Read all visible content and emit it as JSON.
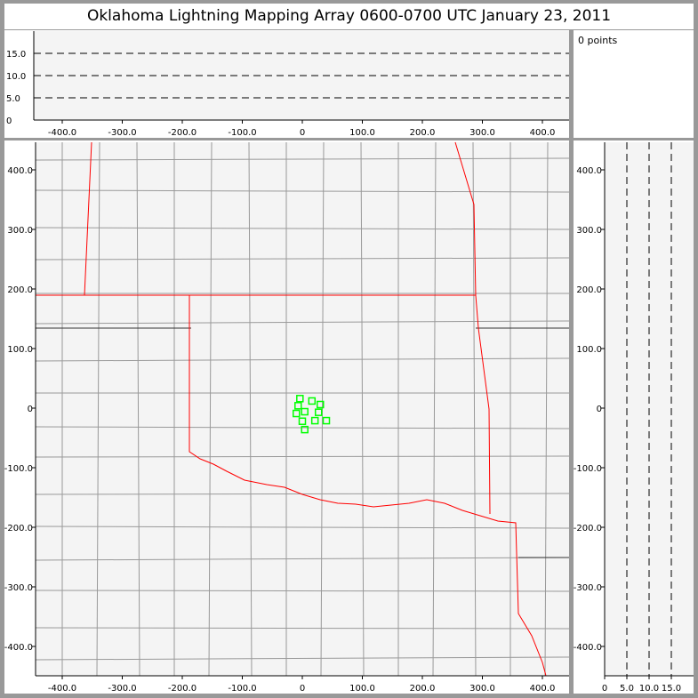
{
  "title": "Oklahoma Lightning Mapping Array   0600-0700 UTC  January 23, 2011",
  "info_panel": {
    "points_label": "0 points"
  },
  "top_panel": {
    "x_ticks": [
      "-400.0",
      "-300.0",
      "-200.0",
      "-100.0",
      "0",
      "100.0",
      "200.0",
      "300.0",
      "400.0"
    ],
    "y_ticks": [
      "0",
      "5.0",
      "10.0",
      "15.0"
    ]
  },
  "map_panel": {
    "x_ticks": [
      "-400.0",
      "-300.0",
      "-200.0",
      "-100.0",
      "0",
      "100.0",
      "200.0",
      "300.0",
      "400.0"
    ],
    "y_ticks": [
      "400.0",
      "300.0",
      "200.0",
      "100.0",
      "0",
      "-100.0",
      "-200.0",
      "-300.0",
      "-400.0"
    ],
    "stations_km": [
      [
        -4,
        16
      ],
      [
        16,
        12
      ],
      [
        30,
        6
      ],
      [
        -7,
        4
      ],
      [
        4,
        -6
      ],
      [
        -10,
        -9
      ],
      [
        27,
        -7
      ],
      [
        0,
        -22
      ],
      [
        21,
        -21
      ],
      [
        40,
        -21
      ],
      [
        4,
        -36
      ]
    ]
  },
  "side_panel": {
    "x_ticks": [
      "0",
      "5.0",
      "10.0",
      "15.0"
    ],
    "y_ticks": [
      "400.0",
      "300.0",
      "200.0",
      "100.0",
      "0",
      "-100.0",
      "-200.0",
      "-300.0",
      "-400.0"
    ]
  },
  "colors": {
    "background": "#f4f4f4",
    "state_border": "#ff0000",
    "county_border": "#999999",
    "station": "#00ff00",
    "frame": "#999999"
  }
}
